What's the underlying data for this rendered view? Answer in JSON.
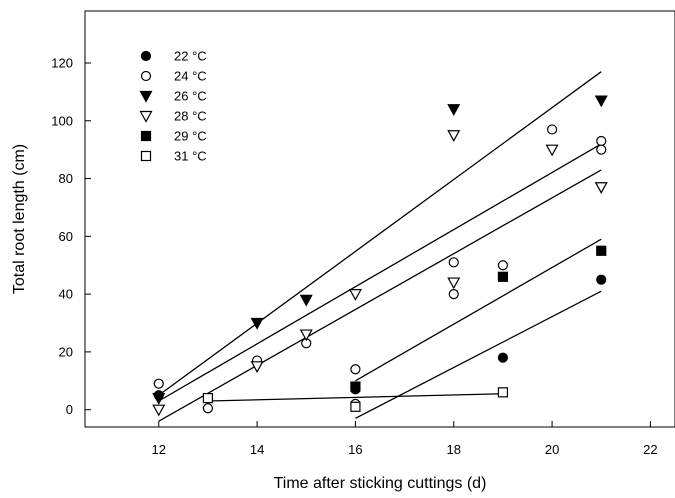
{
  "chart_data": {
    "type": "scatter",
    "title": "",
    "xlabel": "Time after sticking cuttings (d)",
    "ylabel": "Total root length (cm)",
    "xlim": [
      10.5,
      22.5
    ],
    "ylim": [
      -6,
      138
    ],
    "x_ticks": [
      12,
      14,
      16,
      18,
      20,
      22
    ],
    "y_ticks": [
      0,
      20,
      40,
      60,
      80,
      100,
      120
    ],
    "grid": false,
    "legend_position": "top-left",
    "series": [
      {
        "name": "22 °C",
        "marker": "circle",
        "filled": true,
        "points": [
          [
            12,
            5
          ],
          [
            16,
            7
          ],
          [
            19,
            18
          ],
          [
            21,
            45
          ]
        ],
        "fit_line": [
          [
            16,
            -3
          ],
          [
            21,
            41
          ]
        ]
      },
      {
        "name": "24 °C",
        "marker": "circle",
        "filled": false,
        "points": [
          [
            12,
            9
          ],
          [
            13,
            0.5
          ],
          [
            14,
            17
          ],
          [
            15,
            23
          ],
          [
            16,
            14
          ],
          [
            16,
            2
          ],
          [
            18,
            51
          ],
          [
            18,
            40
          ],
          [
            19,
            50
          ],
          [
            20,
            97
          ],
          [
            21,
            93
          ],
          [
            21,
            90
          ]
        ],
        "fit_line": [
          [
            12,
            3
          ],
          [
            21,
            92
          ]
        ]
      },
      {
        "name": "26 °C",
        "marker": "triangle-down",
        "filled": true,
        "points": [
          [
            12,
            4
          ],
          [
            14,
            30
          ],
          [
            15,
            38
          ],
          [
            18,
            104
          ],
          [
            21,
            107
          ]
        ],
        "fit_line": [
          [
            12,
            5
          ],
          [
            21,
            117
          ]
        ]
      },
      {
        "name": "28 °C",
        "marker": "triangle-down",
        "filled": false,
        "points": [
          [
            12,
            0
          ],
          [
            14,
            15
          ],
          [
            15,
            26
          ],
          [
            16,
            40
          ],
          [
            18,
            95
          ],
          [
            18,
            44
          ],
          [
            20,
            90
          ],
          [
            21,
            77
          ]
        ],
        "fit_line": [
          [
            12,
            -4
          ],
          [
            21,
            83
          ]
        ]
      },
      {
        "name": "29 °C",
        "marker": "square",
        "filled": true,
        "points": [
          [
            16,
            8
          ],
          [
            19,
            46
          ],
          [
            21,
            55
          ]
        ],
        "fit_line": [
          [
            16,
            10
          ],
          [
            21,
            59
          ]
        ]
      },
      {
        "name": "31 °C",
        "marker": "square",
        "filled": false,
        "points": [
          [
            13,
            4
          ],
          [
            16,
            1
          ],
          [
            19,
            6
          ]
        ],
        "fit_line": [
          [
            13,
            3
          ],
          [
            19,
            5.5
          ]
        ]
      }
    ]
  }
}
